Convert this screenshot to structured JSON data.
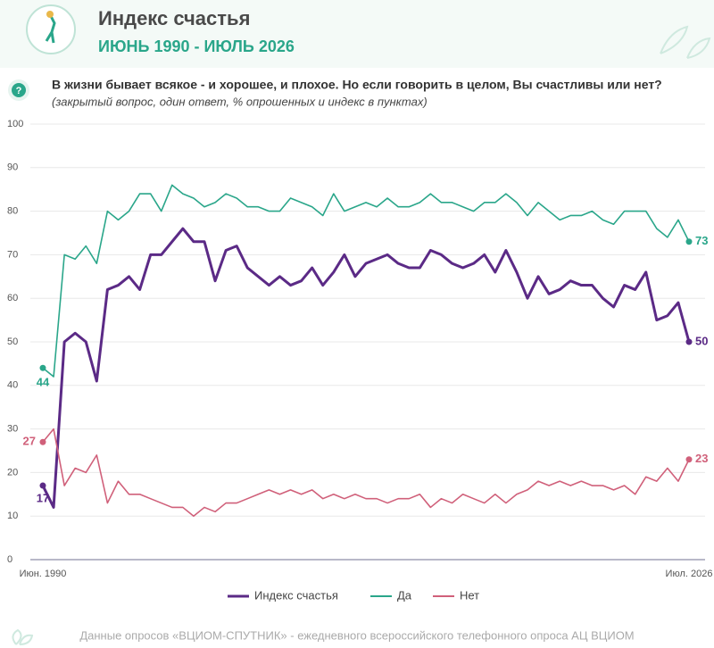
{
  "chart_data": {
    "type": "line",
    "title": "Индекс счастья",
    "subtitle": "ИЮНЬ 1990 - ИЮЛЬ 2026",
    "question": "В жизни бывает всякое - и хорошее, и плохое. Но если говорить в целом, Вы счастливы  или нет?",
    "note": "(закрытый вопрос, один ответ, % опрошенных и индекс в пунктах)",
    "source": "Данные опросов «ВЦИОМ-СПУТНИК» - ежедневного всероссийского телефонного опроса АЦ ВЦИОМ",
    "categories": [
      "Июн. 1990",
      null,
      null,
      null,
      null,
      null,
      null,
      null,
      null,
      null,
      null,
      null,
      null,
      null,
      null,
      null,
      null,
      null,
      null,
      null,
      null,
      null,
      null,
      null,
      null,
      null,
      null,
      null,
      null,
      null,
      null,
      null,
      null,
      null,
      null,
      null,
      null,
      null,
      null,
      null,
      null,
      null,
      null,
      null,
      null,
      null,
      null,
      null,
      null,
      null,
      null,
      null,
      null,
      null,
      null,
      null,
      null,
      null,
      null,
      null,
      "Июл. 2026"
    ],
    "series": [
      {
        "name": "Индекс счастья",
        "color": "#5b2a86",
        "values": [
          17,
          12,
          50,
          52,
          50,
          41,
          62,
          63,
          65,
          62,
          70,
          70,
          73,
          76,
          73,
          73,
          64,
          71,
          72,
          67,
          65,
          63,
          65,
          63,
          64,
          67,
          63,
          66,
          70,
          65,
          68,
          69,
          70,
          68,
          67,
          67,
          71,
          70,
          68,
          67,
          68,
          70,
          66,
          71,
          66,
          60,
          65,
          61,
          62,
          64,
          63,
          63,
          60,
          58,
          63,
          62,
          66,
          55,
          56,
          59,
          50
        ]
      },
      {
        "name": "Да",
        "color": "#2aa68a",
        "values": [
          44,
          42,
          70,
          69,
          72,
          68,
          80,
          78,
          80,
          84,
          84,
          80,
          86,
          84,
          83,
          81,
          82,
          84,
          83,
          81,
          81,
          80,
          80,
          83,
          82,
          81,
          79,
          84,
          80,
          81,
          82,
          81,
          83,
          81,
          81,
          82,
          84,
          82,
          82,
          81,
          80,
          82,
          82,
          84,
          82,
          79,
          82,
          80,
          78,
          79,
          79,
          80,
          78,
          77,
          80,
          80,
          80,
          76,
          74,
          78,
          73
        ]
      },
      {
        "name": "Нет",
        "color": "#d0607a",
        "values": [
          27,
          30,
          17,
          21,
          20,
          24,
          13,
          18,
          15,
          15,
          14,
          13,
          12,
          12,
          10,
          12,
          11,
          13,
          13,
          14,
          15,
          16,
          15,
          16,
          15,
          16,
          14,
          15,
          14,
          15,
          14,
          14,
          13,
          14,
          14,
          15,
          12,
          14,
          13,
          15,
          14,
          13,
          15,
          13,
          15,
          16,
          18,
          17,
          18,
          17,
          18,
          17,
          17,
          16,
          17,
          15,
          19,
          18,
          21,
          18,
          23
        ]
      }
    ],
    "ylim": [
      0,
      100
    ],
    "yticks": [
      0,
      10,
      20,
      30,
      40,
      50,
      60,
      70,
      80,
      90,
      100
    ],
    "grid": true
  }
}
